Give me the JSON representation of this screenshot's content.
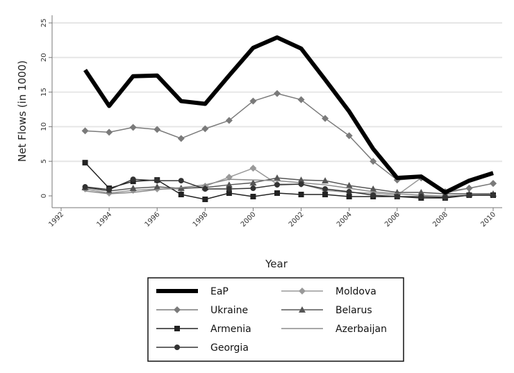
{
  "chart_data": {
    "type": "line",
    "title": "",
    "xlabel": "Year",
    "ylabel": "Net Flows (in 1000)",
    "xlim": [
      1992,
      2010
    ],
    "ylim": [
      0,
      25
    ],
    "x_ticks": [
      "1992",
      "1994",
      "1996",
      "1998",
      "2000",
      "2002",
      "2004",
      "2006",
      "2008",
      "2010"
    ],
    "y_ticks": [
      "0",
      "5",
      "10",
      "15",
      "20",
      "25"
    ],
    "grid": "horizontal",
    "legend_position": "bottom",
    "x": [
      1993,
      1994,
      1995,
      1996,
      1997,
      1998,
      1999,
      2000,
      2001,
      2002,
      2003,
      2004,
      2005,
      2006,
      2007,
      2008,
      2009,
      2010
    ],
    "series": [
      {
        "name": "EaP",
        "color": "#000000",
        "marker": "none",
        "width": 6,
        "values": [
          18.2,
          13.0,
          17.3,
          17.4,
          13.7,
          13.3,
          17.4,
          21.4,
          22.9,
          21.3,
          16.8,
          12.2,
          6.8,
          2.6,
          2.8,
          0.5,
          2.2,
          3.3
        ]
      },
      {
        "name": "Moldova",
        "color": "#999999",
        "marker": "diamond",
        "width": 1.5,
        "values": [
          1.0,
          0.4,
          0.8,
          1.0,
          1.0,
          1.4,
          2.7,
          4.0,
          1.7,
          1.7,
          0.8,
          0.5,
          0.4,
          0.1,
          2.6,
          0.4,
          1.1,
          1.8
        ]
      },
      {
        "name": "Ukraine",
        "color": "#7a7a7a",
        "marker": "diamond",
        "width": 1.5,
        "values": [
          9.4,
          9.2,
          9.9,
          9.6,
          8.3,
          9.7,
          10.9,
          13.7,
          14.8,
          13.9,
          11.2,
          8.7,
          5.0,
          2.3,
          2.6,
          0.6,
          1.1,
          1.8
        ]
      },
      {
        "name": "Belarus",
        "color": "#555555",
        "marker": "triangle",
        "width": 1.5,
        "values": [
          1.2,
          0.7,
          1.1,
          1.3,
          1.1,
          1.2,
          1.6,
          1.9,
          2.6,
          2.3,
          2.2,
          1.5,
          1.0,
          0.5,
          0.5,
          0.3,
          0.3,
          0.3
        ]
      },
      {
        "name": "Armenia",
        "color": "#222222",
        "marker": "square",
        "width": 1.5,
        "values": [
          4.8,
          1.1,
          2.1,
          2.3,
          0.2,
          -0.5,
          0.4,
          -0.1,
          0.4,
          0.2,
          0.2,
          -0.1,
          -0.1,
          -0.1,
          -0.3,
          -0.3,
          0.1,
          0.1
        ]
      },
      {
        "name": "Azerbaijan",
        "color": "#8a8a8a",
        "marker": "none",
        "width": 1.5,
        "values": [
          0.7,
          0.3,
          0.5,
          0.9,
          1.2,
          1.6,
          2.4,
          2.3,
          2.2,
          1.9,
          1.6,
          1.1,
          0.6,
          0.3,
          0.1,
          0.0,
          0.1,
          0.2
        ]
      },
      {
        "name": "Georgia",
        "color": "#333333",
        "marker": "circle",
        "width": 1.5,
        "values": [
          1.3,
          0.9,
          2.4,
          2.2,
          2.2,
          1.0,
          1.0,
          1.1,
          1.6,
          1.7,
          1.0,
          0.6,
          0.1,
          -0.1,
          -0.1,
          -0.2,
          0.1,
          0.1
        ]
      }
    ]
  }
}
